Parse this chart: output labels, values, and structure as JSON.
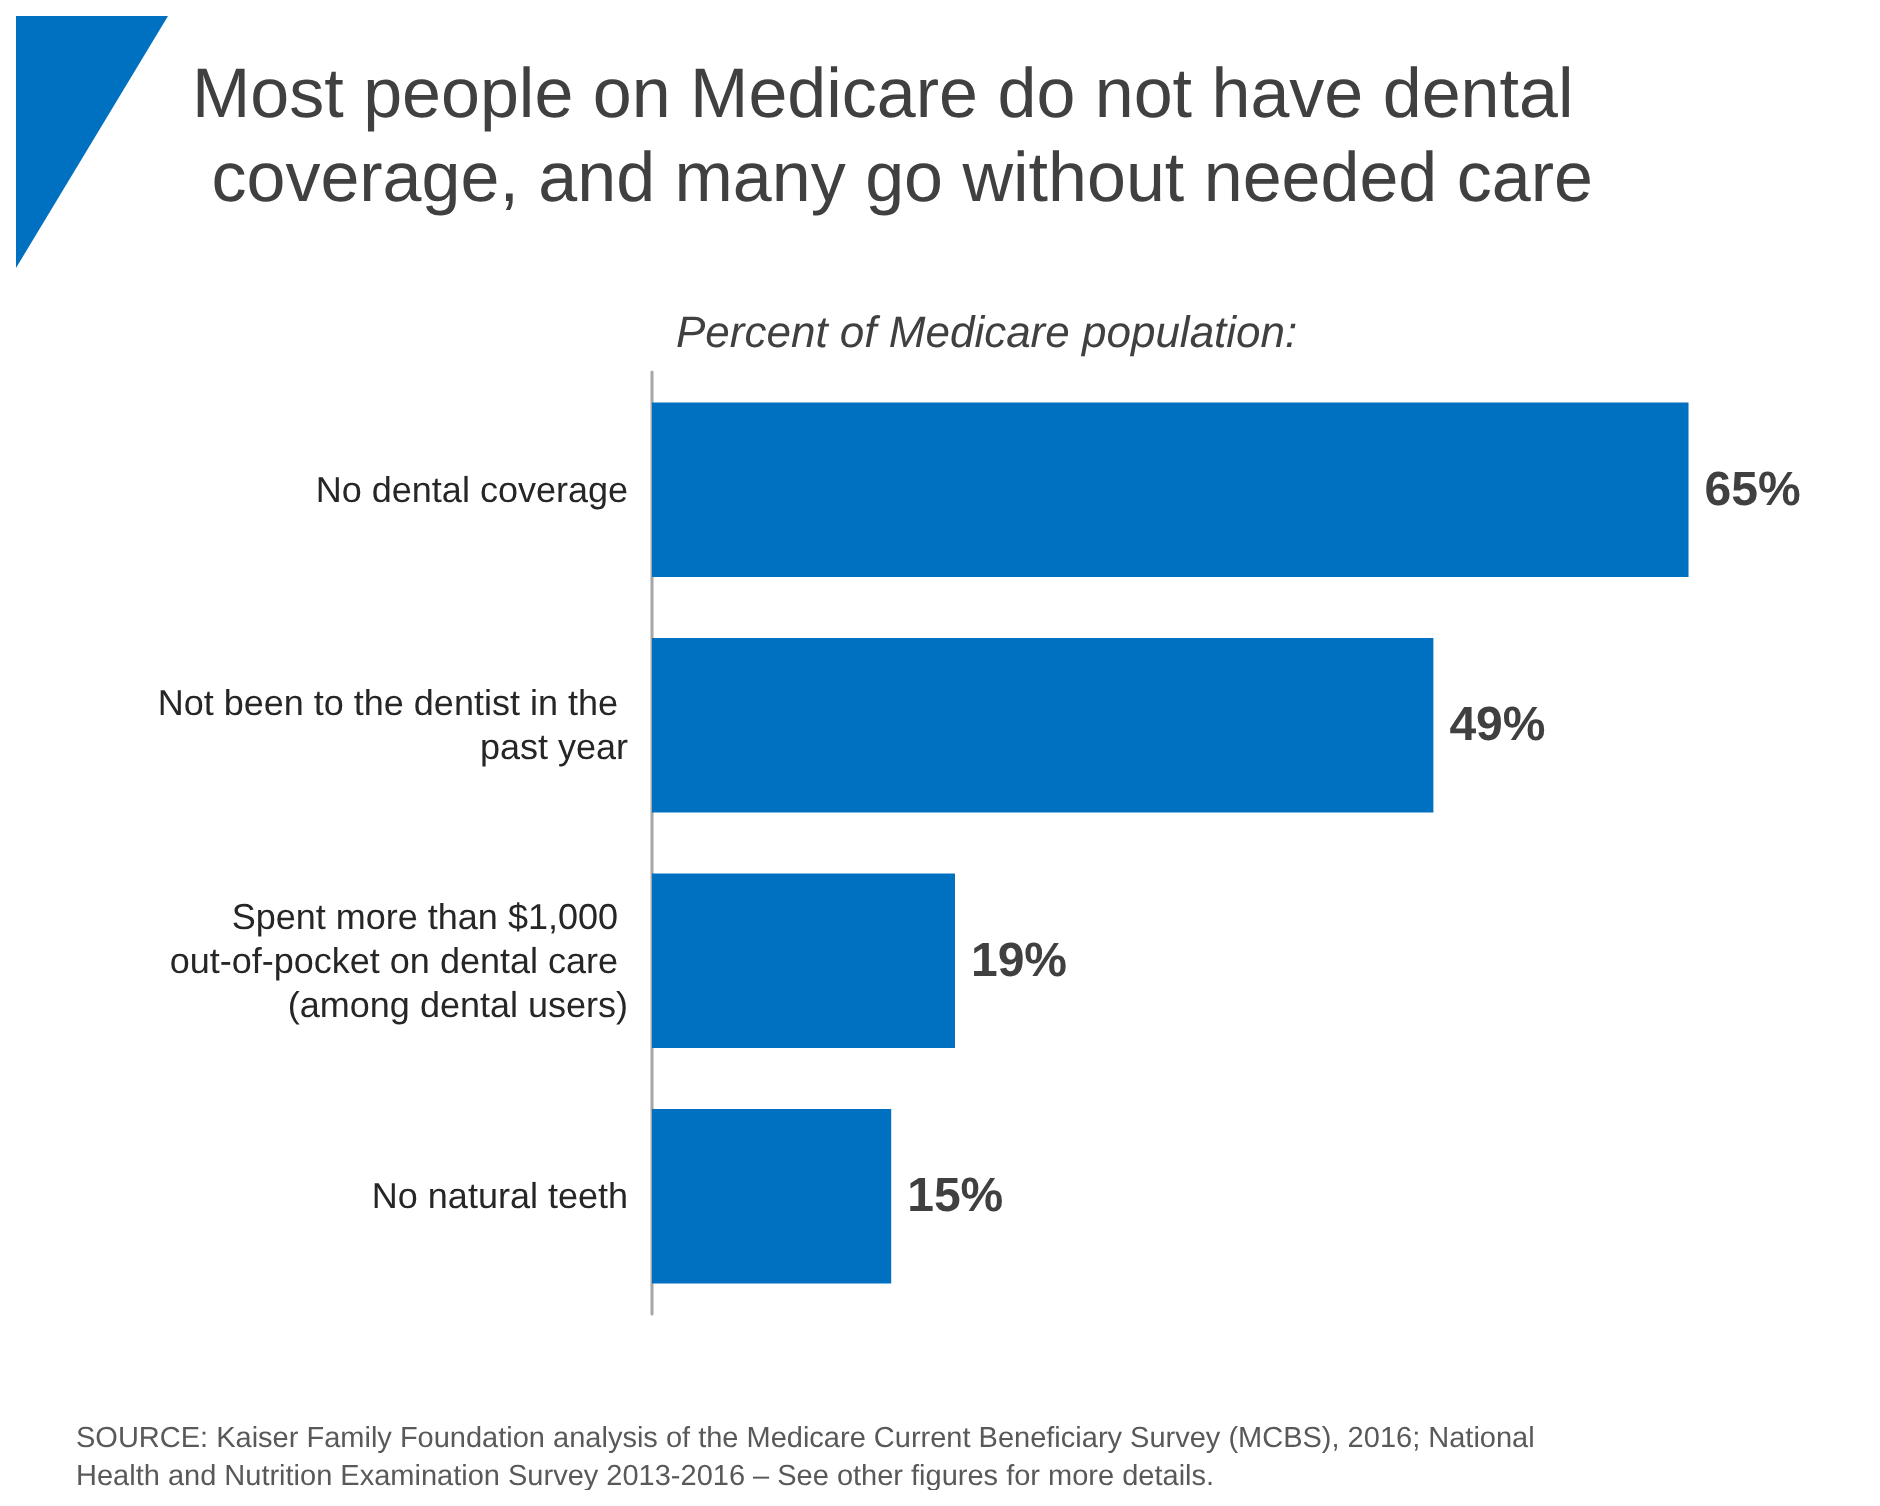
{
  "chart_data": {
    "type": "bar",
    "orientation": "horizontal",
    "title": "Most people on Medicare do not have dental coverage, and many go without needed care",
    "subtitle": "Percent of Medicare population:",
    "categories": [
      "No dental coverage",
      "Not been to the dentist in the past year",
      "Spent more than $1,000 out-of-pocket on dental care (among dental users)",
      "No natural teeth"
    ],
    "values": [
      65,
      49,
      19,
      15
    ],
    "value_labels": [
      "65%",
      "49%",
      "19%",
      "15%"
    ],
    "color": "#0070c0",
    "annotations": [
      "SOURCE: Kaiser Family Foundation analysis of the Medicare Current Beneficiary Survey (MCBS), 2016; National Health and Nutrition Examination Survey 2013-2016 – See other figures for more details."
    ]
  }
}
